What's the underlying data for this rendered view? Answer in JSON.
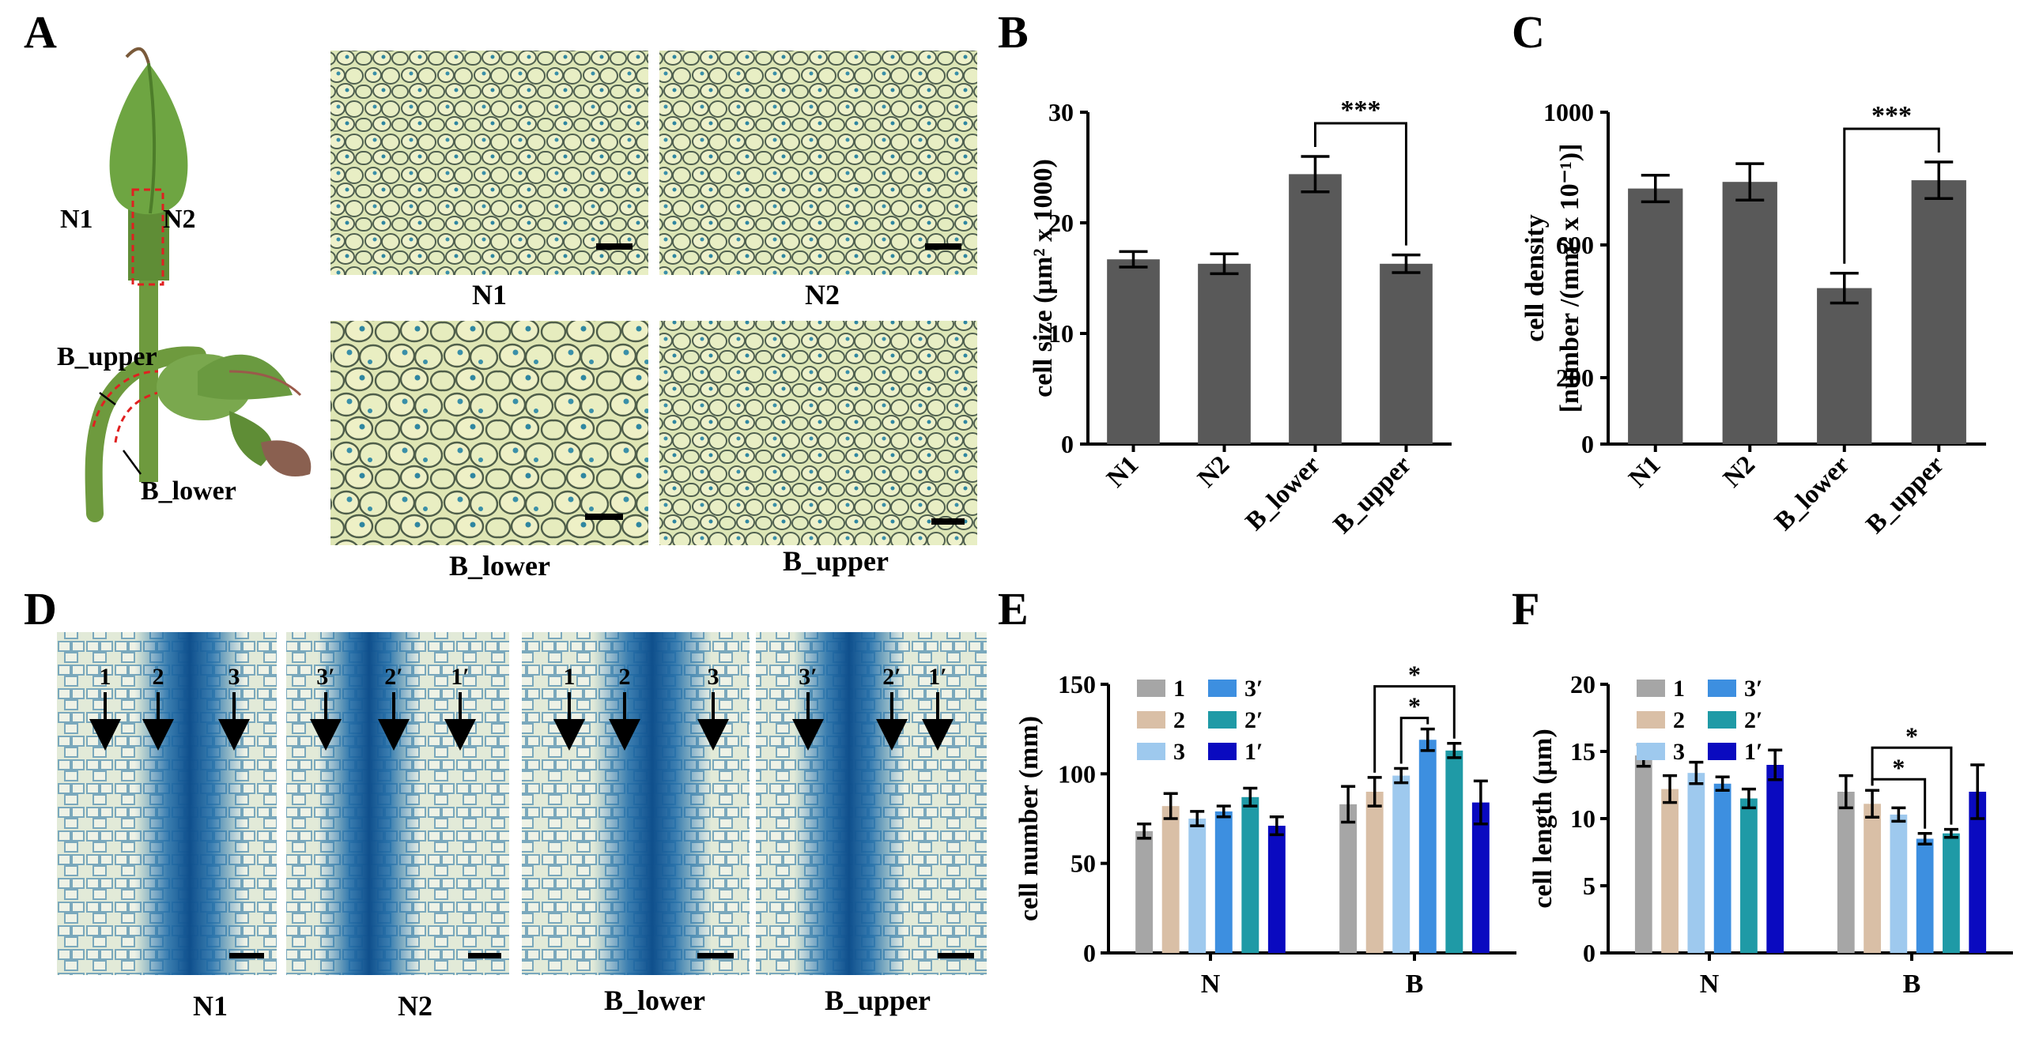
{
  "panel_letters": {
    "a": "A",
    "b": "B",
    "c": "C",
    "d": "D",
    "e": "E",
    "f": "F"
  },
  "panel_a": {
    "bud_labels": {
      "n1": "N1",
      "n2": "N2"
    },
    "bent_labels": {
      "upper": "B_upper",
      "lower": "B_lower"
    },
    "micrograph_captions": {
      "n1": "N1",
      "n2": "N2",
      "b_lower": "B_lower",
      "b_upper": "B_upper"
    }
  },
  "panel_d": {
    "captions": {
      "n1": "N1",
      "n2": "N2",
      "b_lower": "B_lower",
      "b_upper": "B_upper"
    },
    "arrow_labels": {
      "n1": [
        "1",
        "2",
        "3"
      ],
      "n2": [
        "3′",
        "2′",
        "1′"
      ],
      "b_lower": [
        "1",
        "2",
        "3"
      ],
      "b_upper": [
        "3′",
        "2′",
        "1′"
      ]
    }
  },
  "colors": {
    "bar_dark": "#595959",
    "series": [
      "#a6a6a6",
      "#d9bfa6",
      "#9ec9ee",
      "#3d8fe0",
      "#1f9aa6",
      "#0a0ac0"
    ]
  },
  "chart_data": [
    {
      "id": "B",
      "type": "bar",
      "categories": [
        "N1",
        "N2",
        "B_lower",
        "B_upper"
      ],
      "values": [
        16.7,
        16.3,
        24.4,
        16.3
      ],
      "errors": [
        0.7,
        0.9,
        1.6,
        0.8
      ],
      "ylabel": "cell size (µm² x 1000)",
      "ylim": [
        0,
        30
      ],
      "yticks": [
        "0",
        "10",
        "20",
        "30"
      ],
      "significance": [
        {
          "pair": [
            "B_lower",
            "B_upper"
          ],
          "label": "***"
        }
      ]
    },
    {
      "id": "C",
      "type": "bar",
      "categories": [
        "N1",
        "N2",
        "B_lower",
        "B_upper"
      ],
      "values": [
        770,
        790,
        470,
        795
      ],
      "errors": [
        40,
        55,
        45,
        55
      ],
      "ylabel_line1": "cell density",
      "ylabel_line2": "[number /(mm² x 10⁻¹)]",
      "ylim": [
        0,
        1000
      ],
      "yticks": [
        "0",
        "200",
        "600",
        "1000"
      ],
      "significance": [
        {
          "pair": [
            "B_lower",
            "B_upper"
          ],
          "label": "***"
        }
      ]
    },
    {
      "id": "E",
      "type": "bar",
      "categories": [
        "N",
        "B"
      ],
      "series": [
        {
          "name": "1",
          "values": [
            68,
            83
          ],
          "errors": [
            4,
            10
          ]
        },
        {
          "name": "2",
          "values": [
            82,
            90
          ],
          "errors": [
            7,
            8
          ]
        },
        {
          "name": "3",
          "values": [
            75,
            99
          ],
          "errors": [
            4,
            4
          ]
        },
        {
          "name": "3′",
          "values": [
            79,
            119
          ],
          "errors": [
            3,
            6
          ]
        },
        {
          "name": "2′",
          "values": [
            87,
            113
          ],
          "errors": [
            5,
            4
          ]
        },
        {
          "name": "1′",
          "values": [
            71,
            84
          ],
          "errors": [
            5,
            12
          ]
        }
      ],
      "ylabel": "cell number (mm)",
      "ylim": [
        0,
        150
      ],
      "yticks": [
        "0",
        "50",
        "100",
        "150"
      ],
      "legend_placement": "top-left",
      "significance": [
        {
          "group": "B",
          "pair": [
            "3",
            "3′"
          ],
          "label": "*"
        },
        {
          "group": "B",
          "pair": [
            "2",
            "2′"
          ],
          "label": "*"
        }
      ]
    },
    {
      "id": "F",
      "type": "bar",
      "categories": [
        "N",
        "B"
      ],
      "series": [
        {
          "name": "1",
          "values": [
            14.7,
            12.0
          ],
          "errors": [
            0.8,
            1.2
          ]
        },
        {
          "name": "2",
          "values": [
            12.2,
            11.1
          ],
          "errors": [
            1.0,
            1.0
          ]
        },
        {
          "name": "3",
          "values": [
            13.4,
            10.3
          ],
          "errors": [
            0.8,
            0.5
          ]
        },
        {
          "name": "3′",
          "values": [
            12.6,
            8.5
          ],
          "errors": [
            0.5,
            0.4
          ]
        },
        {
          "name": "2′",
          "values": [
            11.5,
            8.9
          ],
          "errors": [
            0.7,
            0.3
          ]
        },
        {
          "name": "1′",
          "values": [
            14.0,
            12.0
          ],
          "errors": [
            1.1,
            2.0
          ]
        }
      ],
      "ylabel": "cell length (µm)",
      "ylim": [
        0,
        20
      ],
      "yticks": [
        "0",
        "5",
        "10",
        "15",
        "20"
      ],
      "legend_placement": "top-left",
      "significance": [
        {
          "group": "B",
          "pair": [
            "2",
            "3′"
          ],
          "label": "*"
        },
        {
          "group": "B",
          "pair": [
            "2",
            "2′"
          ],
          "label": "*"
        }
      ]
    }
  ]
}
